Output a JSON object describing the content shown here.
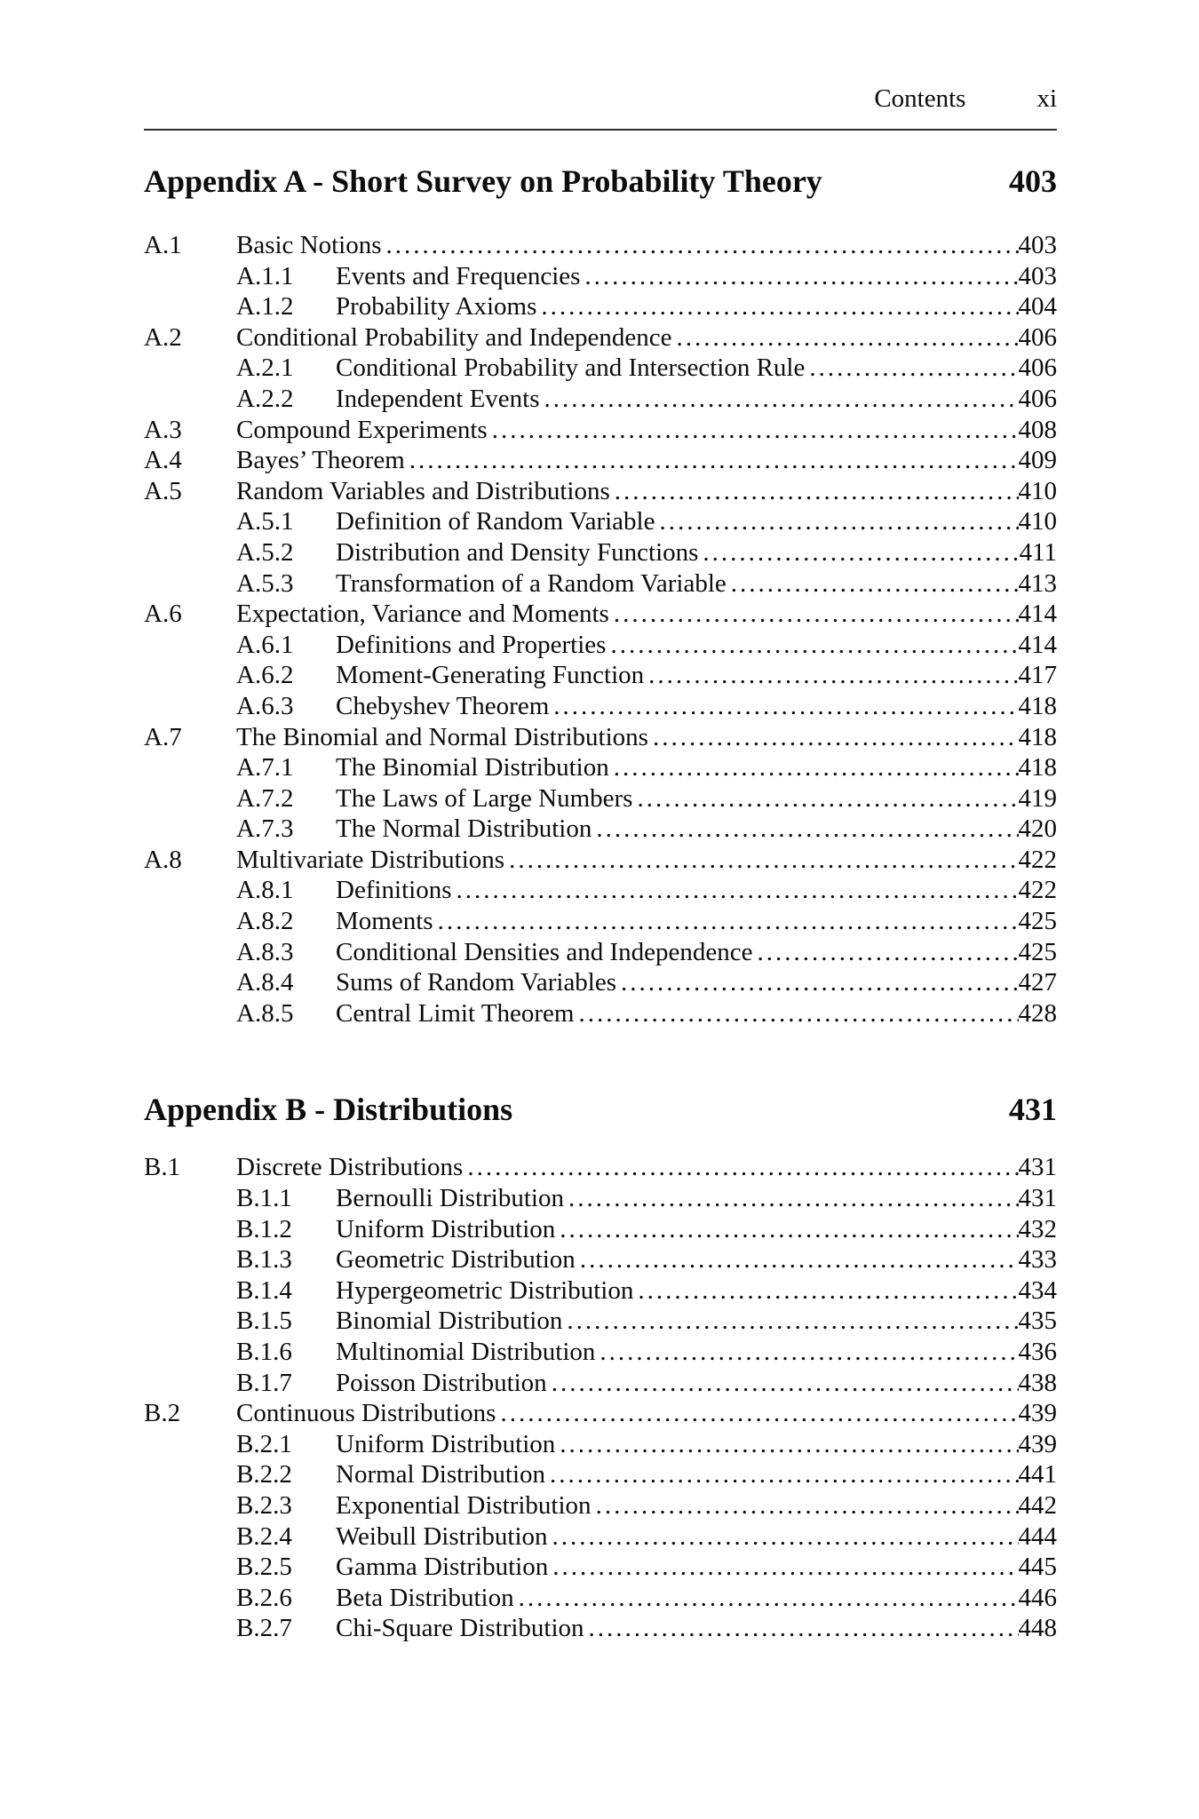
{
  "page_header": {
    "title": "Contents",
    "page_number": "xi"
  },
  "sections": [
    {
      "heading": "Appendix A - Short Survey on Probability Theory",
      "page": "403",
      "entries": [
        {
          "level": 1,
          "num": "A.1",
          "title": "Basic Notions",
          "page": "403"
        },
        {
          "level": 2,
          "num": "A.1.1",
          "title": "Events and Frequencies",
          "page": "403"
        },
        {
          "level": 2,
          "num": "A.1.2",
          "title": "Probability Axioms",
          "page": "404"
        },
        {
          "level": 1,
          "num": "A.2",
          "title": "Conditional Probability and Independence",
          "page": "406"
        },
        {
          "level": 2,
          "num": "A.2.1",
          "title": "Conditional Probability and Intersection Rule",
          "page": "406"
        },
        {
          "level": 2,
          "num": "A.2.2",
          "title": "Independent Events",
          "page": "406"
        },
        {
          "level": 1,
          "num": "A.3",
          "title": "Compound Experiments",
          "page": "408"
        },
        {
          "level": 1,
          "num": "A.4",
          "title": "Bayes’ Theorem",
          "page": "409"
        },
        {
          "level": 1,
          "num": "A.5",
          "title": "Random Variables and Distributions",
          "page": "410"
        },
        {
          "level": 2,
          "num": "A.5.1",
          "title": "Definition of Random Variable",
          "page": "410"
        },
        {
          "level": 2,
          "num": "A.5.2",
          "title": "Distribution and Density Functions",
          "page": "411"
        },
        {
          "level": 2,
          "num": "A.5.3",
          "title": "Transformation of a Random Variable",
          "page": "413"
        },
        {
          "level": 1,
          "num": "A.6",
          "title": "Expectation, Variance and Moments",
          "page": "414"
        },
        {
          "level": 2,
          "num": "A.6.1",
          "title": "Definitions and Properties",
          "page": "414"
        },
        {
          "level": 2,
          "num": "A.6.2",
          "title": "Moment-Generating Function",
          "page": "417"
        },
        {
          "level": 2,
          "num": "A.6.3",
          "title": "Chebyshev Theorem",
          "page": "418"
        },
        {
          "level": 1,
          "num": "A.7",
          "title": "The Binomial and Normal Distributions",
          "page": "418"
        },
        {
          "level": 2,
          "num": "A.7.1",
          "title": "The Binomial Distribution",
          "page": "418"
        },
        {
          "level": 2,
          "num": "A.7.2",
          "title": "The Laws of Large Numbers",
          "page": "419"
        },
        {
          "level": 2,
          "num": "A.7.3",
          "title": "The Normal Distribution",
          "page": "420"
        },
        {
          "level": 1,
          "num": "A.8",
          "title": "Multivariate Distributions",
          "page": "422"
        },
        {
          "level": 2,
          "num": "A.8.1",
          "title": "Definitions",
          "page": "422"
        },
        {
          "level": 2,
          "num": "A.8.2",
          "title": "Moments",
          "page": "425"
        },
        {
          "level": 2,
          "num": "A.8.3",
          "title": "Conditional Densities and Independence",
          "page": "425"
        },
        {
          "level": 2,
          "num": "A.8.4",
          "title": "Sums of Random Variables",
          "page": "427"
        },
        {
          "level": 2,
          "num": "A.8.5",
          "title": "Central Limit Theorem",
          "page": "428"
        }
      ]
    },
    {
      "heading": "Appendix B - Distributions",
      "page": "431",
      "entries": [
        {
          "level": 1,
          "num": "B.1",
          "title": "Discrete Distributions",
          "page": "431"
        },
        {
          "level": 2,
          "num": "B.1.1",
          "title": "Bernoulli Distribution",
          "page": "431"
        },
        {
          "level": 2,
          "num": "B.1.2",
          "title": "Uniform Distribution",
          "page": "432"
        },
        {
          "level": 2,
          "num": "B.1.3",
          "title": "Geometric Distribution",
          "page": "433"
        },
        {
          "level": 2,
          "num": "B.1.4",
          "title": "Hypergeometric Distribution",
          "page": "434"
        },
        {
          "level": 2,
          "num": "B.1.5",
          "title": "Binomial Distribution",
          "page": "435"
        },
        {
          "level": 2,
          "num": "B.1.6",
          "title": "Multinomial Distribution",
          "page": "436"
        },
        {
          "level": 2,
          "num": "B.1.7",
          "title": "Poisson Distribution",
          "page": "438"
        },
        {
          "level": 1,
          "num": "B.2",
          "title": "Continuous Distributions",
          "page": "439"
        },
        {
          "level": 2,
          "num": "B.2.1",
          "title": "Uniform Distribution",
          "page": "439"
        },
        {
          "level": 2,
          "num": "B.2.2",
          "title": "Normal Distribution",
          "page": "441"
        },
        {
          "level": 2,
          "num": "B.2.3",
          "title": "Exponential Distribution",
          "page": "442"
        },
        {
          "level": 2,
          "num": "B.2.4",
          "title": "Weibull Distribution",
          "page": "444"
        },
        {
          "level": 2,
          "num": "B.2.5",
          "title": "Gamma Distribution",
          "page": "445"
        },
        {
          "level": 2,
          "num": "B.2.6",
          "title": "Beta Distribution",
          "page": "446"
        },
        {
          "level": 2,
          "num": "B.2.7",
          "title": "Chi-Square Distribution",
          "page": "448"
        }
      ]
    }
  ]
}
